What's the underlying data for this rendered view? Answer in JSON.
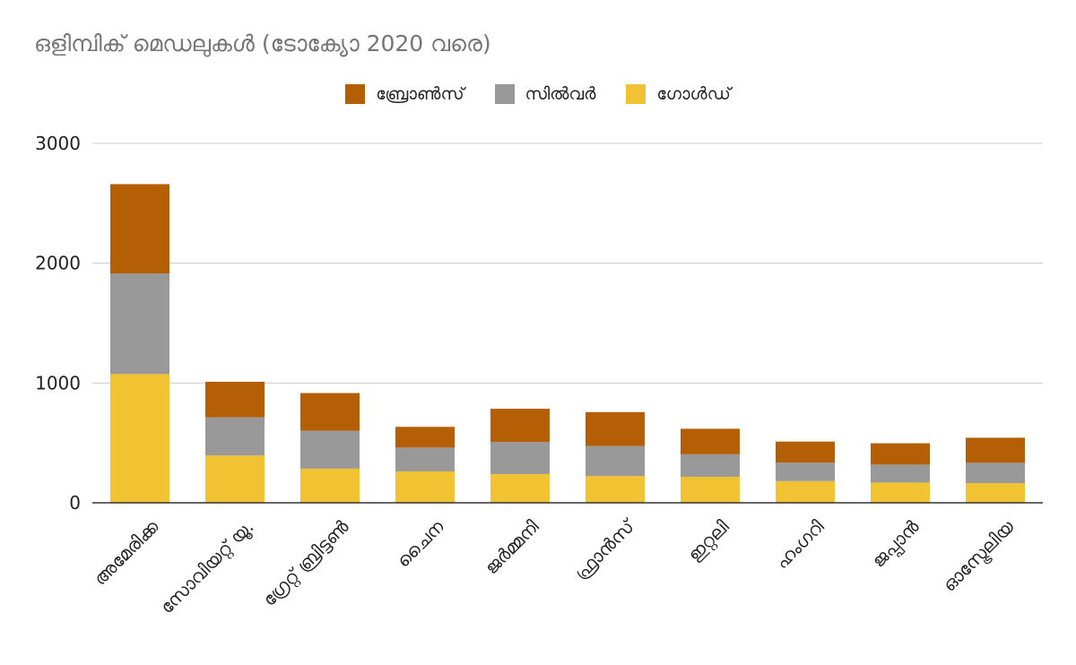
{
  "chart_data": {
    "type": "bar",
    "stacked": true,
    "title": "ഒളിമ്പിക് മെഡലുകൾ (ടോക്യോ 2020 വരെ)",
    "xlabel": "",
    "ylabel": "",
    "ylim": [
      0,
      3000
    ],
    "yticks": [
      "0",
      "1000",
      "2000",
      "3000"
    ],
    "grid": true,
    "legend_position": "top",
    "categories": [
      "അമേരിക്ക",
      "സോവിയറ്റ് യൂ.",
      "ഗ്രേറ്റ് ബ്രിട്ടൺ",
      "ചൈന",
      "ജർമ്മനി",
      "ഫ്രാൻസ്",
      "ഇറ്റലി",
      "ഹംഗറി",
      "ജപ്പാൻ",
      "ഓസ്ട്രേലിയ"
    ],
    "series": [
      {
        "name": "ഗോൾഡ്",
        "color": "#F1C232",
        "values": [
          1075,
          395,
          285,
          262,
          240,
          223,
          217,
          181,
          169,
          164
        ]
      },
      {
        "name": "സിൽവർ",
        "color": "#999999",
        "values": [
          840,
          319,
          316,
          199,
          268,
          251,
          188,
          154,
          150,
          170
        ]
      },
      {
        "name": "ബ്രോൺസ്",
        "color": "#B45F06",
        "values": [
          745,
          296,
          315,
          173,
          277,
          283,
          213,
          176,
          178,
          209
        ]
      }
    ],
    "legend_order": [
      "ബ്രോൺസ്",
      "സിൽവർ",
      "ഗോൾഡ്"
    ]
  }
}
